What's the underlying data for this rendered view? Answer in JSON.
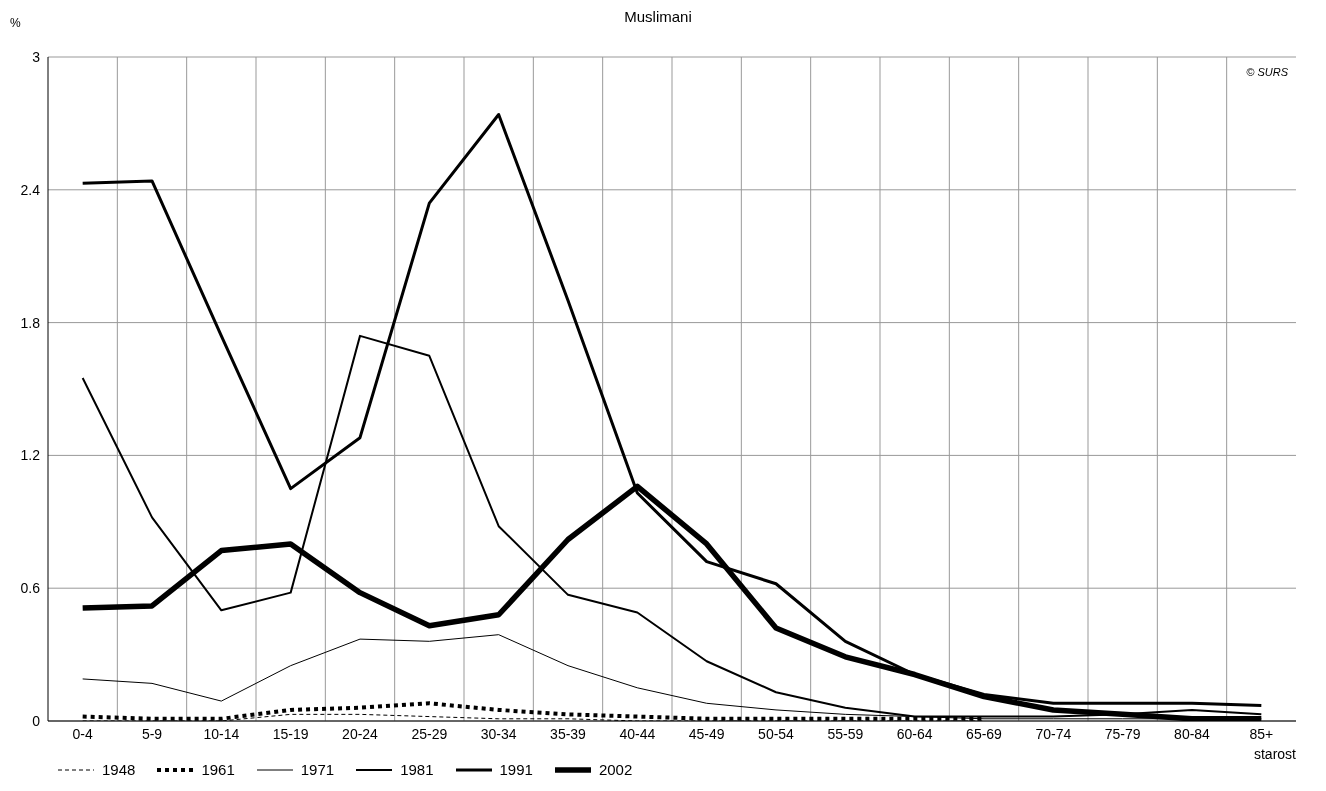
{
  "chart_data": {
    "type": "line",
    "title": "Muslimani",
    "ylabel": "%",
    "xlabel": "starost",
    "annotations": [
      "© SURS"
    ],
    "categories": [
      "0-4",
      "5-9",
      "10-14",
      "15-19",
      "20-24",
      "25-29",
      "30-34",
      "35-39",
      "40-44",
      "45-49",
      "50-54",
      "55-59",
      "60-64",
      "65-69",
      "70-74",
      "75-79",
      "80-84",
      "85+"
    ],
    "series": [
      {
        "name": "1948",
        "color": "#000000",
        "line_style": "dashed",
        "values": [
          0,
          0,
          0,
          0.03,
          0.03,
          0.02,
          0.01,
          0.01,
          0,
          0,
          0,
          0,
          0,
          0,
          null,
          null,
          null,
          null
        ]
      },
      {
        "name": "1961",
        "color": "#000000",
        "line_style": "dotted",
        "values": [
          0.02,
          0.01,
          0.01,
          0.05,
          0.06,
          0.08,
          0.05,
          0.03,
          0.02,
          0.01,
          0.01,
          0.01,
          0.01,
          0.01,
          null,
          null,
          null,
          null
        ]
      },
      {
        "name": "1971",
        "color": "#000000",
        "line_style": "solid",
        "values": [
          0.19,
          0.17,
          0.09,
          0.25,
          0.37,
          0.36,
          0.39,
          0.25,
          0.15,
          0.08,
          0.05,
          0.03,
          0.02,
          0.01,
          0.01,
          0.01,
          0.01,
          0.01
        ]
      },
      {
        "name": "1981",
        "color": "#000000",
        "line_style": "solid",
        "values": [
          1.55,
          0.92,
          0.5,
          0.58,
          1.74,
          1.65,
          0.88,
          0.57,
          0.49,
          0.27,
          0.13,
          0.06,
          0.02,
          0.02,
          0.02,
          0.03,
          0.05,
          0.03
        ]
      },
      {
        "name": "1991",
        "color": "#000000",
        "line_style": "solid",
        "values": [
          2.43,
          2.44,
          1.74,
          1.05,
          1.28,
          2.34,
          2.74,
          1.9,
          1.03,
          0.72,
          0.62,
          0.36,
          0.21,
          0.12,
          0.08,
          0.08,
          0.08,
          0.07
        ]
      },
      {
        "name": "2002",
        "color": "#000000",
        "line_style": "solid",
        "values": [
          0.51,
          0.52,
          0.77,
          0.8,
          0.58,
          0.43,
          0.48,
          0.82,
          1.06,
          0.8,
          0.42,
          0.29,
          0.21,
          0.11,
          0.05,
          0.03,
          0.01,
          0.01
        ]
      }
    ],
    "ylim": [
      0,
      3
    ],
    "yticks": [
      0,
      0.6,
      1.2,
      1.8,
      2.4,
      3
    ],
    "grid": true,
    "legend": "bottom left",
    "marker": "none"
  }
}
